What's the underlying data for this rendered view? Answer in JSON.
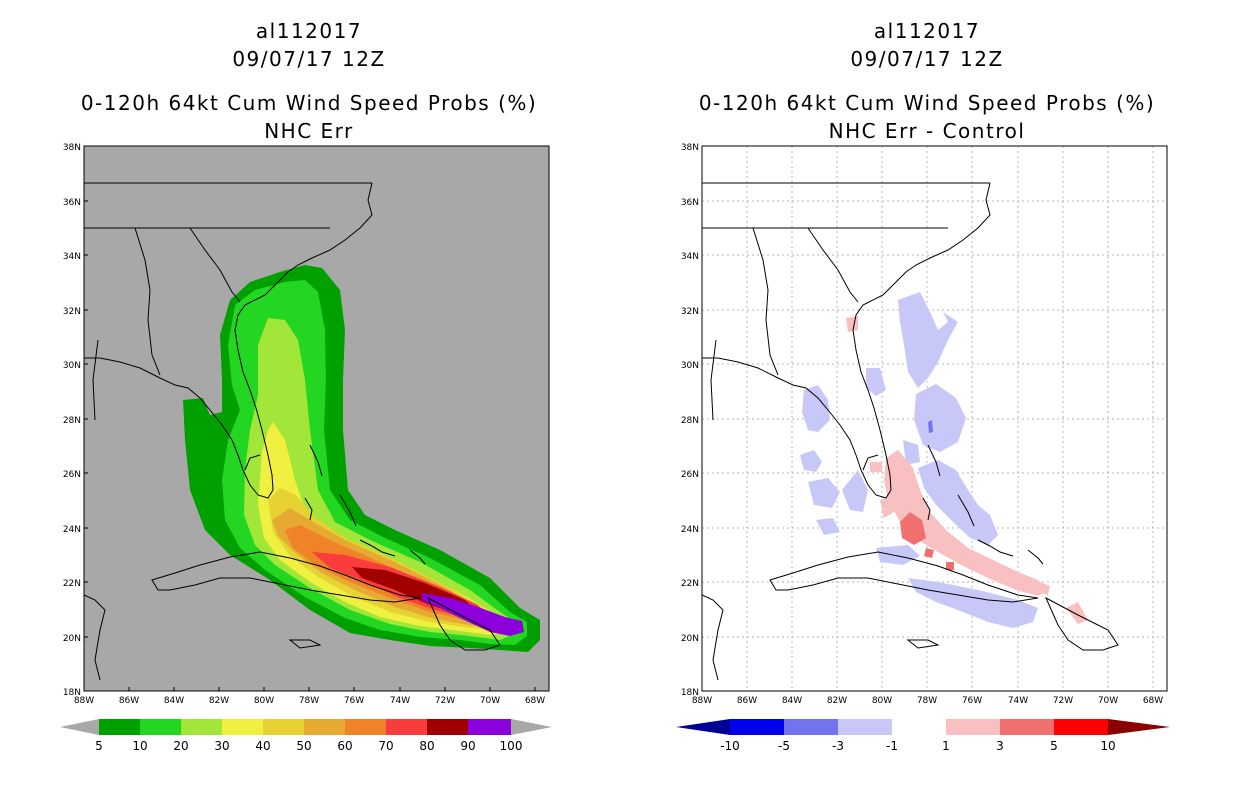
{
  "left_panel": {
    "title_line1": "al112017",
    "title_line2": "09/07/17 12Z",
    "title_line3": "0-120h 64kt Cum Wind Speed Probs (%)",
    "title_line4": "NHC Err"
  },
  "right_panel": {
    "title_line1": "al112017",
    "title_line2": "09/07/17 12Z",
    "title_line3": "0-120h 64kt Cum Wind Speed Probs (%)",
    "title_line4": "NHC Err - Control"
  },
  "axes": {
    "lat_labels": [
      "38N",
      "36N",
      "34N",
      "32N",
      "30N",
      "28N",
      "26N",
      "24N",
      "22N",
      "20N",
      "18N"
    ],
    "lon_labels": [
      "88W",
      "86W",
      "84W",
      "82W",
      "80W",
      "78W",
      "76W",
      "74W",
      "72W",
      "70W",
      "68W"
    ],
    "lat_range": [
      18,
      38
    ],
    "lon_range": [
      -88,
      -67
    ]
  },
  "left_colorbar": {
    "labels": [
      "5",
      "10",
      "20",
      "30",
      "40",
      "50",
      "60",
      "70",
      "80",
      "90",
      "100"
    ],
    "colors": [
      "#00a000",
      "#22d622",
      "#a2e63a",
      "#f0f040",
      "#e6d232",
      "#e6aa32",
      "#f08228",
      "#fa3c3c",
      "#a00000",
      "#8c00dc"
    ],
    "under_color": "#a8a8a8",
    "over_color": "#a8a8a8"
  },
  "right_colorbar": {
    "labels": [
      "-10",
      "-5",
      "-3",
      "-1",
      "1",
      "3",
      "5",
      "10"
    ],
    "colors": [
      "#0000f0",
      "#7373ee",
      "#c8c8f8",
      "#ffffff",
      "#f8c0c0",
      "#f07070",
      "#ff0000"
    ],
    "under_color": "#000096",
    "over_color": "#8c0000"
  },
  "map_colors": {
    "left_background": "#a8a8a8",
    "right_background": "#ffffff"
  }
}
